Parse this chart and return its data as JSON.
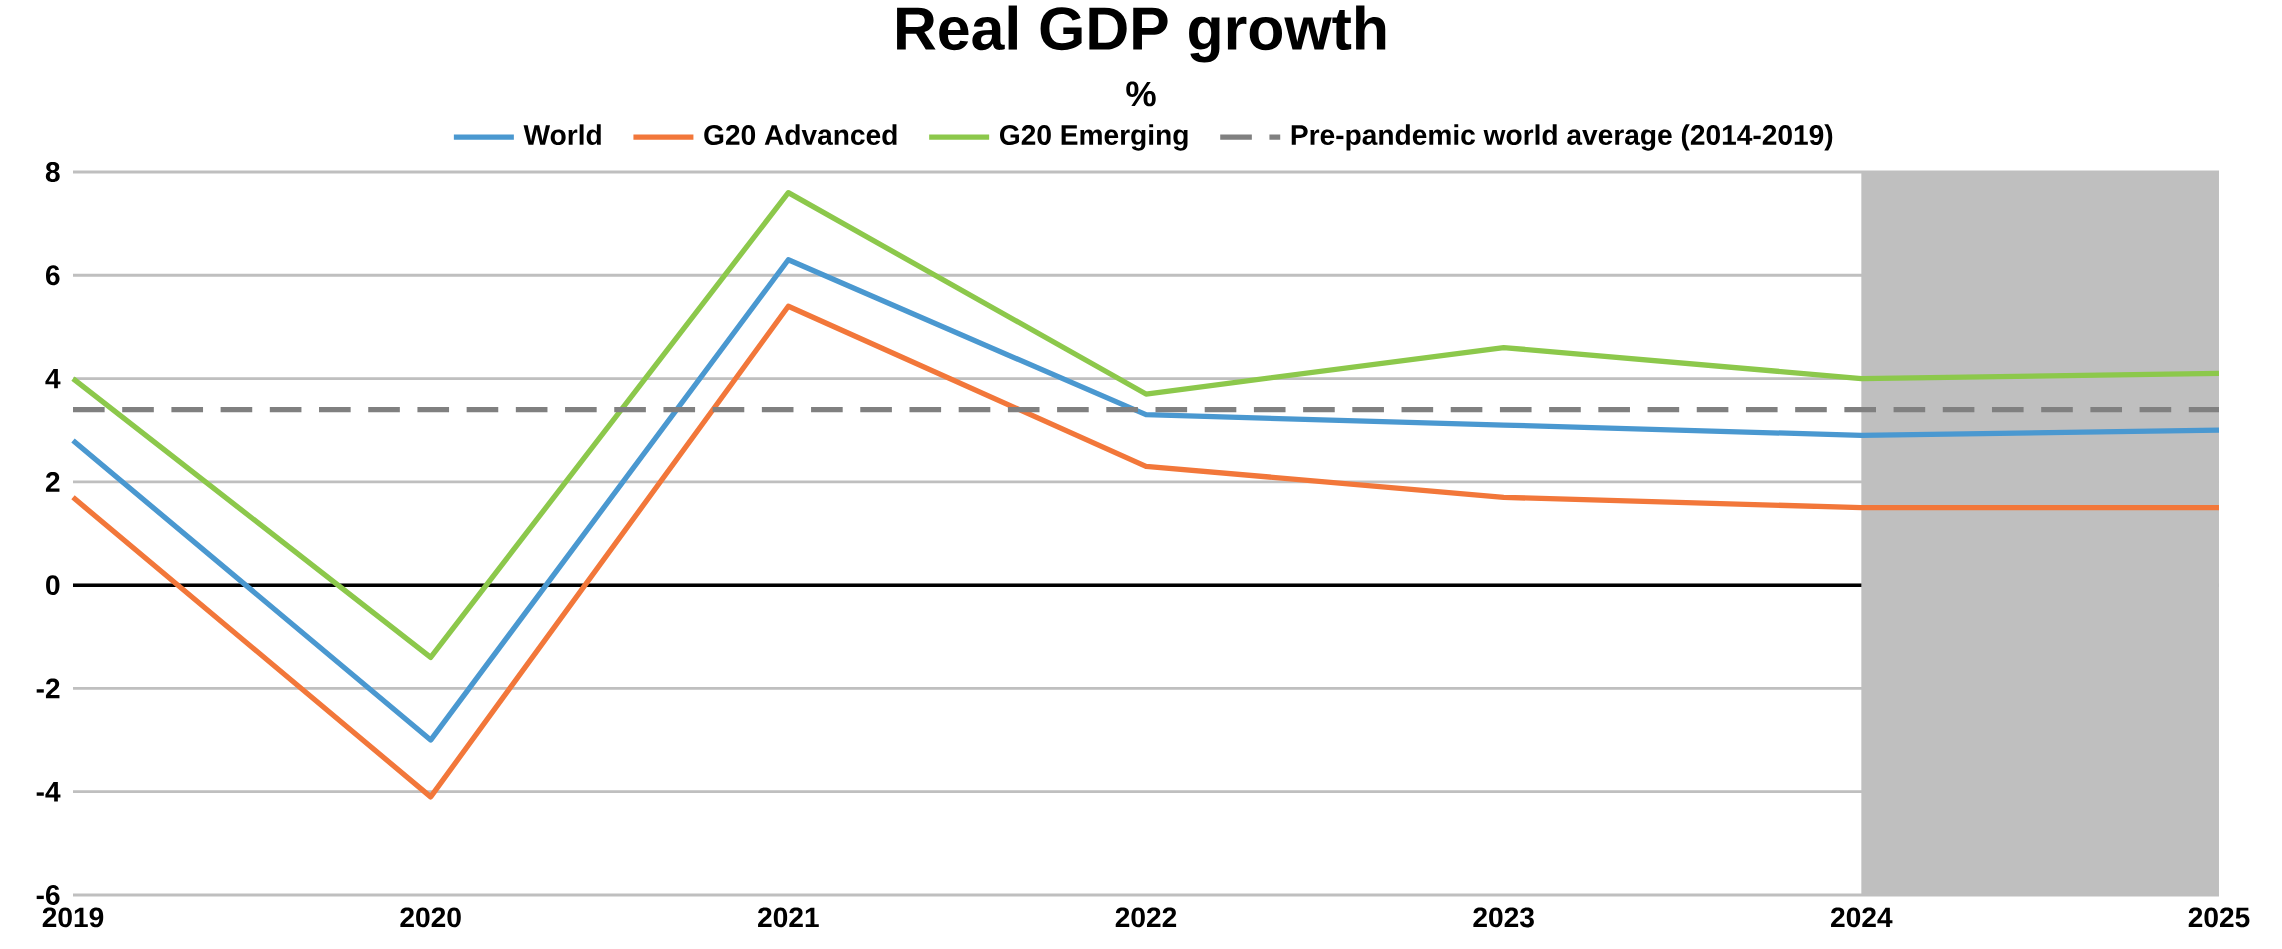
{
  "chart_data": {
    "type": "line",
    "title": "Real GDP growth",
    "subtitle": "%",
    "x": [
      2019,
      2020,
      2021,
      2022,
      2023,
      2024,
      2025
    ],
    "xlim": [
      2019,
      2025
    ],
    "xticks": [
      2019,
      2020,
      2021,
      2022,
      2023,
      2024,
      2025
    ],
    "ylim": [
      -6,
      8
    ],
    "yticks": [
      -6,
      -4,
      -2,
      0,
      2,
      4,
      6,
      8
    ],
    "series": [
      {
        "name": "World",
        "color": "#4a98d0",
        "values": [
          2.8,
          -3.0,
          6.3,
          3.3,
          3.1,
          2.9,
          3.0
        ]
      },
      {
        "name": "G20 Advanced",
        "color": "#f2773a",
        "values": [
          1.7,
          -4.1,
          5.4,
          2.3,
          1.7,
          1.5,
          1.5
        ]
      },
      {
        "name": "G20 Emerging",
        "color": "#8cc84b",
        "values": [
          4.0,
          -1.4,
          7.6,
          3.7,
          4.6,
          4.0,
          4.1
        ]
      }
    ],
    "ref_lines": [
      {
        "axis": "y",
        "value": 3.4,
        "label": "Pre-pandemic world average (2014-2019)",
        "color": "#808080",
        "line_style": "dashed"
      }
    ],
    "bands": [
      {
        "axis": "x",
        "from": 2024,
        "to": 2025,
        "color": "#bfbfbf"
      }
    ],
    "grid": "y",
    "legend": "top",
    "marker": "none",
    "line_style": "solid"
  }
}
